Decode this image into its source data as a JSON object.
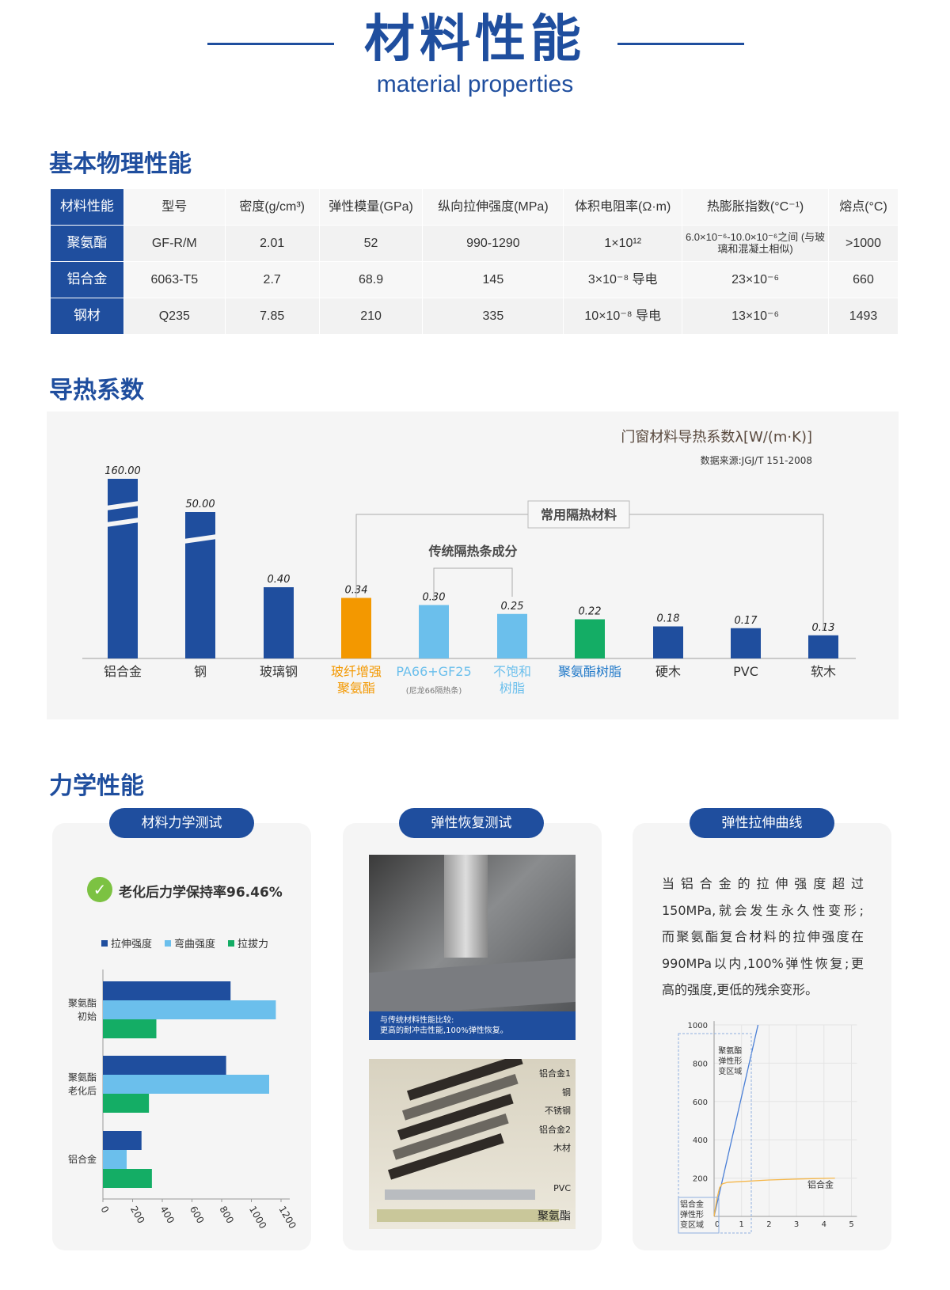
{
  "header": {
    "title": "材料性能",
    "subtitle": "material properties"
  },
  "sections": {
    "basic": "基本物理性能",
    "thermal": "导热系数",
    "mechanical": "力学性能"
  },
  "table": {
    "headers": [
      "材料性能",
      "型号",
      "密度(g/cm³)",
      "弹性模量(GPa)",
      "纵向拉伸强度(MPa)",
      "体积电阻率(Ω·m)",
      "热膨胀指数(°C⁻¹)",
      "熔点(°C)"
    ],
    "rows": [
      [
        "聚氨酯",
        "GF-R/M",
        "2.01",
        "52",
        "990-1290",
        "1×10¹²",
        "6.0×10⁻⁶-10.0×10⁻⁶之间 (与玻璃和混凝土相似)",
        ">1000"
      ],
      [
        "铝合金",
        "6063-T5",
        "2.7",
        "68.9",
        "145",
        "3×10⁻⁸  导电",
        "23×10⁻⁶",
        "660"
      ],
      [
        "钢材",
        "Q235",
        "7.85",
        "210",
        "335",
        "10×10⁻⁸  导电",
        "13×10⁻⁶",
        "1493"
      ]
    ]
  },
  "chart_data": [
    {
      "type": "bar",
      "title": "门窗材料导热系数λ[W/(m·K)]",
      "subtitle": "数据来源:JGJ/T 151-2008",
      "categories": [
        "铝合金",
        "钢",
        "玻璃钢",
        "玻纤增强聚氨酯",
        "PA66+GF25",
        "不饱和树脂",
        "聚氨酯树脂",
        "硬木",
        "PVC",
        "软木"
      ],
      "category_notes": {
        "PA66+GF25": "(尼龙66隔热条)"
      },
      "values": [
        160.0,
        50.0,
        0.4,
        0.34,
        0.3,
        0.25,
        0.22,
        0.18,
        0.17,
        0.13
      ],
      "value_labels": [
        "160.00",
        "50.00",
        "0.40",
        "0.34",
        "0.30",
        "0.25",
        "0.22",
        "0.18",
        "0.17",
        "0.13"
      ],
      "bar_colors": [
        "#1f4e9e",
        "#1f4e9e",
        "#1f4e9e",
        "#f39800",
        "#6bbfec",
        "#6bbfec",
        "#14ad65",
        "#1f4e9e",
        "#1f4e9e",
        "#1f4e9e"
      ],
      "label_colors": [
        "#333",
        "#333",
        "#333",
        "#f39800",
        "#6bbfec",
        "#6bbfec",
        "#1f78c8",
        "#333",
        "#333",
        "#333"
      ],
      "broken_axis_bars": [
        "铝合金",
        "钢"
      ],
      "annotations": [
        {
          "text": "常用隔热材料",
          "span": [
            "玻纤增强聚氨酯",
            "软木"
          ]
        },
        {
          "text": "传统隔热条成分",
          "span": [
            "PA66+GF25",
            "不饱和树脂"
          ]
        }
      ]
    },
    {
      "type": "bar",
      "orientation": "horizontal",
      "categories": [
        "聚氨酯初始",
        "聚氨酯老化后",
        "铝合金"
      ],
      "category_lines": [
        [
          "聚氨酯",
          "初始"
        ],
        [
          "聚氨酯",
          "老化后"
        ],
        [
          "铝合金"
        ]
      ],
      "series": [
        {
          "name": "拉伸强度",
          "color": "#1f4e9e",
          "values": [
            860,
            830,
            260
          ]
        },
        {
          "name": "弯曲强度",
          "color": "#6bbfec",
          "values": [
            1165,
            1120,
            160
          ]
        },
        {
          "name": "拉拔力",
          "color": "#14ad65",
          "values": [
            360,
            310,
            330
          ]
        }
      ],
      "xlim": [
        0,
        1200
      ],
      "xticks": [
        0,
        200,
        400,
        600,
        800,
        1000,
        1200
      ],
      "legend": "top"
    },
    {
      "type": "line",
      "xlim": [
        0,
        5
      ],
      "ylim": [
        0,
        1000
      ],
      "xticks": [
        0,
        1,
        2,
        3,
        4,
        5
      ],
      "yticks": [
        200,
        400,
        600,
        800,
        1000
      ],
      "grid": true,
      "series": [
        {
          "name": "聚氨酯",
          "color": "#4a7fd6",
          "x": [
            0,
            1.6
          ],
          "y": [
            0,
            1000
          ]
        },
        {
          "name": "铝合金",
          "color": "#f5b74a",
          "x": [
            0,
            0.1,
            0.2,
            0.3,
            0.5,
            1,
            2,
            3,
            4.4
          ],
          "y": [
            0,
            90,
            150,
            170,
            178,
            182,
            190,
            195,
            200
          ]
        }
      ],
      "region_labels": [
        "聚氨酯弹性形变区域",
        "铝合金弹性形变区域"
      ],
      "region_label_lines": [
        [
          "聚氨酯",
          "弹性形",
          "变区域"
        ],
        [
          "铝合金",
          "弹性形",
          "变区域"
        ]
      ],
      "series_label": "铝合金"
    }
  ],
  "mechanical": {
    "cards": [
      "材料力学测试",
      "弹性恢复测试",
      "弹性拉伸曲线"
    ],
    "retention": "老化后力学保持率96.46%",
    "photo1_caption": [
      "与传统材料性能比较:",
      "更高的耐冲击性能,100%弹性恢复。"
    ],
    "photo2_labels": [
      "铝合金1",
      "钢",
      "不锈钢",
      "铝合金2",
      "木材",
      "PVC",
      "聚氨酯"
    ],
    "curve_text": [
      "当铝合金的拉伸强度超过",
      "150MPa,就会发生永久性变形;",
      "而聚氨酯复合材料的拉伸强度在",
      "990MPa以内,100%弹性恢复;更",
      "高的强度,更低的残余变形。"
    ]
  }
}
